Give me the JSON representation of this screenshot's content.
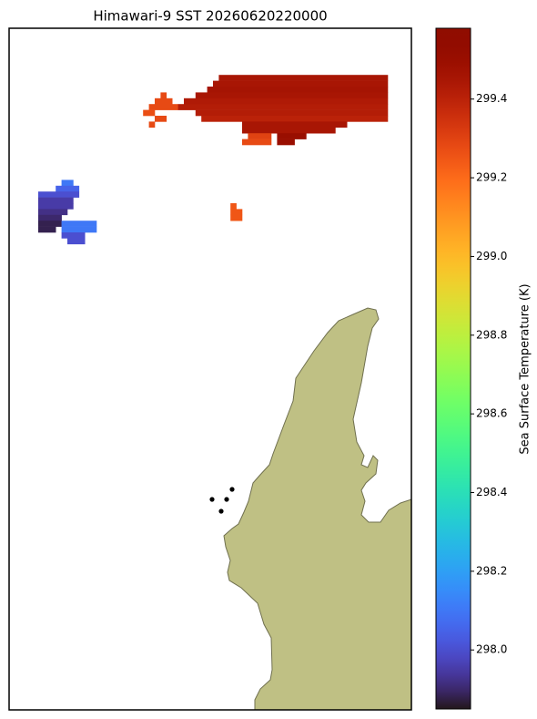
{
  "chart_data": {
    "type": "raster-map",
    "title": "Himawari-9 SST 20260620220000",
    "colorbar": {
      "label": "Sea Surface Temperature (K)",
      "lim": [
        297.85,
        299.58
      ],
      "ticks": [
        {
          "value": 298.0,
          "label": "298.0"
        },
        298.2,
        298.4,
        298.6,
        298.8,
        {
          "value": 299.0,
          "label": "299.0"
        },
        299.2,
        299.4
      ]
    },
    "pixels": [
      {
        "row": 8,
        "col0": 36,
        "col1": 64,
        "value": 299.45
      },
      {
        "row": 9,
        "col0": 35,
        "col1": 64,
        "value": 299.45
      },
      {
        "row": 10,
        "col0": 34,
        "col1": 64,
        "value": 299.46
      },
      {
        "row": 11,
        "col0": 26,
        "col1": 26,
        "value": 299.28
      },
      {
        "row": 11,
        "col0": 32,
        "col1": 64,
        "value": 299.45
      },
      {
        "row": 12,
        "col0": 25,
        "col1": 27,
        "value": 299.28
      },
      {
        "row": 12,
        "col0": 30,
        "col1": 64,
        "value": 299.43
      },
      {
        "row": 13,
        "col0": 24,
        "col1": 28,
        "value": 299.28
      },
      {
        "row": 13,
        "col0": 29,
        "col1": 64,
        "value": 299.42
      },
      {
        "row": 14,
        "col0": 23,
        "col1": 24,
        "value": 299.27
      },
      {
        "row": 14,
        "col0": 32,
        "col1": 64,
        "value": 299.42
      },
      {
        "row": 15,
        "col0": 25,
        "col1": 26,
        "value": 299.28
      },
      {
        "row": 15,
        "col0": 33,
        "col1": 64,
        "value": 299.4
      },
      {
        "row": 16,
        "col0": 24,
        "col1": 24,
        "value": 299.28
      },
      {
        "row": 16,
        "col0": 40,
        "col1": 57,
        "value": 299.45
      },
      {
        "row": 17,
        "col0": 40,
        "col1": 55,
        "value": 299.45
      },
      {
        "row": 18,
        "col0": 41,
        "col1": 44,
        "value": 299.3
      },
      {
        "row": 18,
        "col0": 46,
        "col1": 50,
        "value": 299.5
      },
      {
        "row": 19,
        "col0": 40,
        "col1": 44,
        "value": 299.28
      },
      {
        "row": 19,
        "col0": 46,
        "col1": 48,
        "value": 299.5
      },
      {
        "row": 30,
        "col0": 38,
        "col1": 38,
        "value": 299.25
      },
      {
        "row": 31,
        "col0": 38,
        "col1": 39,
        "value": 299.25
      },
      {
        "row": 32,
        "col0": 38,
        "col1": 39,
        "value": 299.25
      },
      {
        "row": 26,
        "col0": 9,
        "col1": 10,
        "value": 298.1
      },
      {
        "row": 27,
        "col0": 8,
        "col1": 11,
        "value": 298.05
      },
      {
        "row": 28,
        "col0": 5,
        "col1": 11,
        "value": 298.0
      },
      {
        "row": 29,
        "col0": 5,
        "col1": 10,
        "value": 297.95
      },
      {
        "row": 30,
        "col0": 5,
        "col1": 10,
        "value": 297.95
      },
      {
        "row": 31,
        "col0": 5,
        "col1": 9,
        "value": 297.92
      },
      {
        "row": 32,
        "col0": 5,
        "col1": 8,
        "value": 297.9
      },
      {
        "row": 33,
        "col0": 5,
        "col1": 8,
        "value": 297.88
      },
      {
        "row": 33,
        "col0": 9,
        "col1": 14,
        "value": 298.1
      },
      {
        "row": 34,
        "col0": 5,
        "col1": 7,
        "value": 297.88
      },
      {
        "row": 34,
        "col0": 9,
        "col1": 14,
        "value": 298.1
      },
      {
        "row": 35,
        "col0": 9,
        "col1": 12,
        "value": 298.0
      },
      {
        "row": 36,
        "col0": 10,
        "col1": 12,
        "value": 298.0
      }
    ]
  }
}
